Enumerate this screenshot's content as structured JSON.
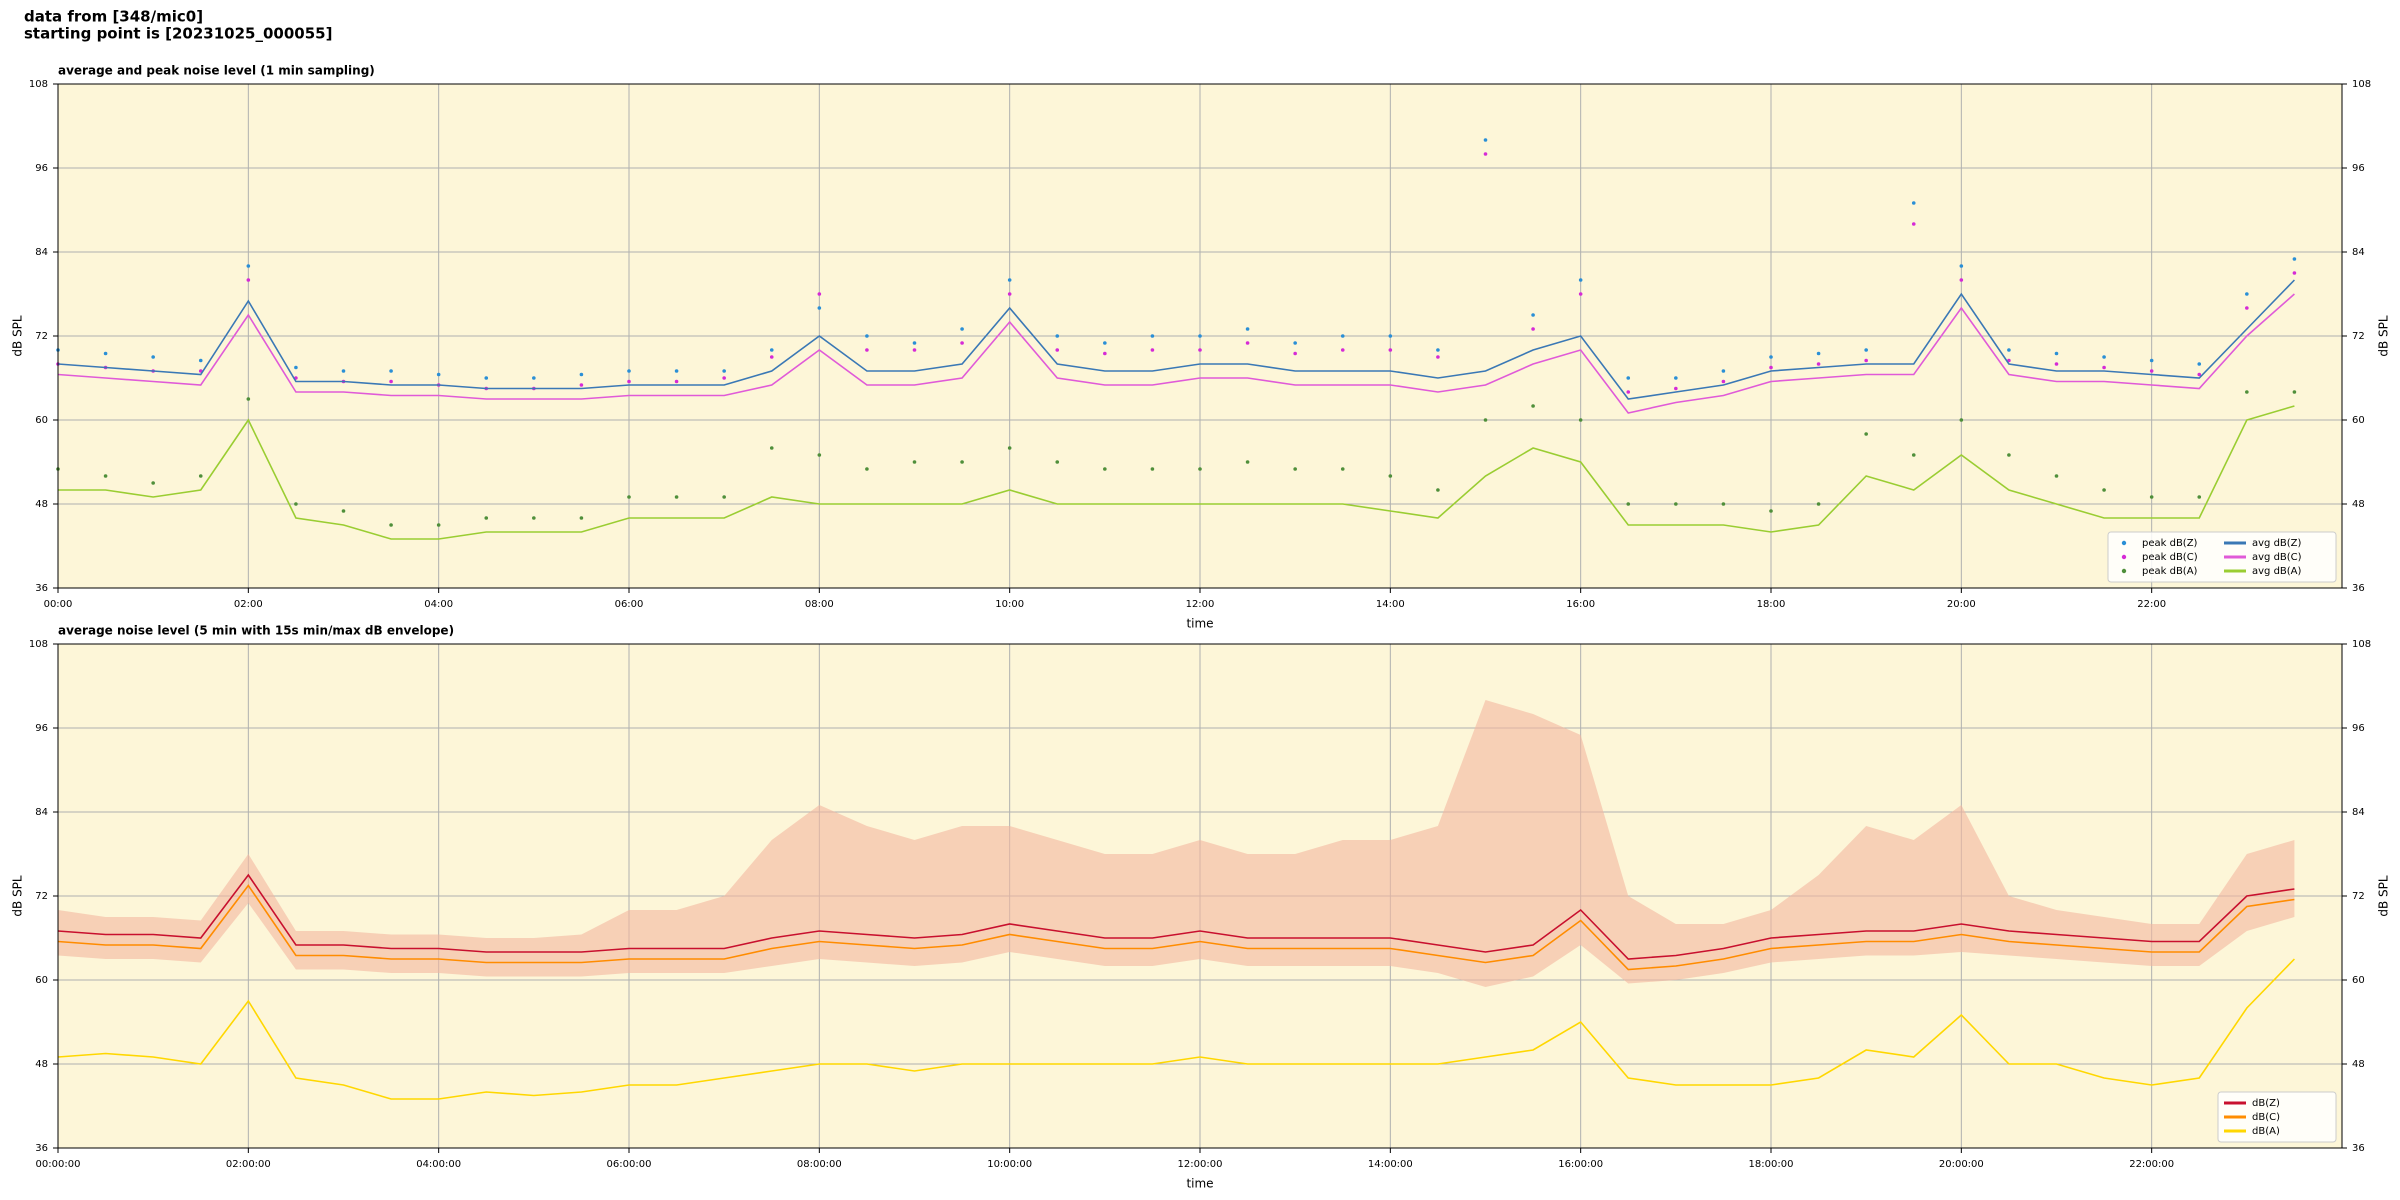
{
  "header": [
    "data from [348/mic0]",
    "starting point is [20231025_000055]"
  ],
  "chart_data": [
    {
      "type": "line",
      "title": "average and peak noise level (1 min sampling)",
      "xlabel": "time",
      "ylabel": "dB SPL",
      "xlim": [
        0,
        24
      ],
      "ylim": [
        36,
        108
      ],
      "yticks": [
        36,
        48,
        60,
        72,
        84,
        96,
        108
      ],
      "xticks": [
        {
          "value": 0,
          "label": "00:00"
        },
        {
          "value": 2,
          "label": "02:00"
        },
        {
          "value": 4,
          "label": "04:00"
        },
        {
          "value": 6,
          "label": "06:00"
        },
        {
          "value": 8,
          "label": "08:00"
        },
        {
          "value": 10,
          "label": "10:00"
        },
        {
          "value": 12,
          "label": "12:00"
        },
        {
          "value": 14,
          "label": "14:00"
        },
        {
          "value": 16,
          "label": "16:00"
        },
        {
          "value": 18,
          "label": "18:00"
        },
        {
          "value": 20,
          "label": "20:00"
        },
        {
          "value": 22,
          "label": "22:00"
        }
      ],
      "grid": true,
      "legend": "lower right",
      "legend_columns": 2,
      "background": "#fdf6d8",
      "x": [
        0,
        0.5,
        1,
        1.5,
        2,
        2.5,
        3,
        3.5,
        4,
        4.5,
        5,
        5.5,
        6,
        6.5,
        7,
        7.5,
        8,
        8.5,
        9,
        9.5,
        10,
        10.5,
        11,
        11.5,
        12,
        12.5,
        13,
        13.5,
        14,
        14.5,
        15,
        15.5,
        16,
        16.5,
        17,
        17.5,
        18,
        18.5,
        19,
        19.5,
        20,
        20.5,
        21,
        21.5,
        22,
        22.5,
        23,
        23.5
      ],
      "series": [
        {
          "name": "peak dB(Z)",
          "kind": "scatter",
          "color": "#2a8fd6",
          "values": [
            70,
            69.5,
            69,
            68.5,
            82,
            67.5,
            67,
            67,
            66.5,
            66,
            66,
            66.5,
            67,
            67,
            67,
            70,
            76,
            72,
            71,
            73,
            80,
            72,
            71,
            72,
            72,
            73,
            71,
            72,
            72,
            70,
            100,
            75,
            80,
            66,
            66,
            67,
            69,
            69.5,
            70,
            91,
            82,
            70,
            69.5,
            69,
            68.5,
            68,
            78,
            83
          ]
        },
        {
          "name": "peak dB(C)",
          "kind": "scatter",
          "color": "#d62ad6",
          "values": [
            68,
            67.5,
            67,
            67,
            80,
            66,
            65.5,
            65.5,
            65,
            64.5,
            64.5,
            65,
            65.5,
            65.5,
            66,
            69,
            78,
            70,
            70,
            71,
            78,
            70,
            69.5,
            70,
            70,
            71,
            69.5,
            70,
            70,
            69,
            98,
            73,
            78,
            64,
            64.5,
            65.5,
            67.5,
            68,
            68.5,
            88,
            80,
            68.5,
            68,
            67.5,
            67,
            66.5,
            76,
            81
          ]
        },
        {
          "name": "peak dB(A)",
          "kind": "scatter",
          "color": "#4f8f3a",
          "values": [
            53,
            52,
            51,
            52,
            63,
            48,
            47,
            45,
            45,
            46,
            46,
            46,
            49,
            49,
            49,
            56,
            55,
            53,
            54,
            54,
            56,
            54,
            53,
            53,
            53,
            54,
            53,
            53,
            52,
            50,
            60,
            62,
            60,
            48,
            48,
            48,
            47,
            48,
            58,
            55,
            60,
            55,
            52,
            50,
            49,
            49,
            64,
            64
          ]
        },
        {
          "name": "avg dB(Z)",
          "kind": "line",
          "color": "#3a78b5",
          "values": [
            68,
            67.5,
            67,
            66.5,
            77,
            65.5,
            65.5,
            65,
            65,
            64.5,
            64.5,
            64.5,
            65,
            65,
            65,
            67,
            72,
            67,
            67,
            68,
            76,
            68,
            67,
            67,
            68,
            68,
            67,
            67,
            67,
            66,
            67,
            70,
            72,
            63,
            64,
            65,
            67,
            67.5,
            68,
            68,
            78,
            68,
            67,
            67,
            66.5,
            66,
            73,
            80
          ]
        },
        {
          "name": "avg dB(C)",
          "kind": "line",
          "color": "#e05ad8",
          "values": [
            66.5,
            66,
            65.5,
            65,
            75,
            64,
            64,
            63.5,
            63.5,
            63,
            63,
            63,
            63.5,
            63.5,
            63.5,
            65,
            70,
            65,
            65,
            66,
            74,
            66,
            65,
            65,
            66,
            66,
            65,
            65,
            65,
            64,
            65,
            68,
            70,
            61,
            62.5,
            63.5,
            65.5,
            66,
            66.5,
            66.5,
            76,
            66.5,
            65.5,
            65.5,
            65,
            64.5,
            72,
            78
          ]
        },
        {
          "name": "avg dB(A)",
          "kind": "line",
          "color": "#9acd32",
          "values": [
            50,
            50,
            49,
            50,
            60,
            46,
            45,
            43,
            43,
            44,
            44,
            44,
            46,
            46,
            46,
            49,
            48,
            48,
            48,
            48,
            50,
            48,
            48,
            48,
            48,
            48,
            48,
            48,
            47,
            46,
            52,
            56,
            54,
            45,
            45,
            45,
            44,
            45,
            52,
            50,
            55,
            50,
            48,
            46,
            46,
            46,
            60,
            62
          ]
        }
      ]
    },
    {
      "type": "line",
      "title": "average noise level (5 min with 15s min/max dB envelope)",
      "xlabel": "time",
      "ylabel": "dB SPL",
      "xlim": [
        0,
        24
      ],
      "ylim": [
        36,
        108
      ],
      "yticks": [
        36,
        48,
        60,
        72,
        84,
        96,
        108
      ],
      "xticks": [
        {
          "value": 0,
          "label": "00:00:00"
        },
        {
          "value": 2,
          "label": "02:00:00"
        },
        {
          "value": 4,
          "label": "04:00:00"
        },
        {
          "value": 6,
          "label": "06:00:00"
        },
        {
          "value": 8,
          "label": "08:00:00"
        },
        {
          "value": 10,
          "label": "10:00:00"
        },
        {
          "value": 12,
          "label": "12:00:00"
        },
        {
          "value": 14,
          "label": "14:00:00"
        },
        {
          "value": 16,
          "label": "16:00:00"
        },
        {
          "value": 18,
          "label": "18:00:00"
        },
        {
          "value": 20,
          "label": "20:00:00"
        },
        {
          "value": 22,
          "label": "22:00:00"
        }
      ],
      "grid": true,
      "legend": "lower right",
      "legend_columns": 1,
      "background": "#fdf6d8",
      "x": [
        0,
        0.5,
        1,
        1.5,
        2,
        2.5,
        3,
        3.5,
        4,
        4.5,
        5,
        5.5,
        6,
        6.5,
        7,
        7.5,
        8,
        8.5,
        9,
        9.5,
        10,
        10.5,
        11,
        11.5,
        12,
        12.5,
        13,
        13.5,
        14,
        14.5,
        15,
        15.5,
        16,
        16.5,
        17,
        17.5,
        18,
        18.5,
        19,
        19.5,
        20,
        20.5,
        21,
        21.5,
        22,
        22.5,
        23,
        23.5
      ],
      "envelope": {
        "color": "#f4b8a0",
        "low": [
          63.5,
          63,
          63,
          62.5,
          71,
          61.5,
          61.5,
          61,
          61,
          60.5,
          60.5,
          60.5,
          61,
          61,
          61,
          62,
          63,
          62.5,
          62,
          62.5,
          64,
          63,
          62,
          62,
          63,
          62,
          62,
          62,
          62,
          61,
          59,
          60.5,
          65,
          59.5,
          60,
          61,
          62.5,
          63,
          63.5,
          63.5,
          64,
          63.5,
          63,
          62.5,
          62,
          62,
          67,
          69
        ],
        "high": [
          70,
          69,
          69,
          68.5,
          78,
          67,
          67,
          66.5,
          66.5,
          66,
          66,
          66.5,
          70,
          70,
          72,
          80,
          85,
          82,
          80,
          82,
          82,
          80,
          78,
          78,
          80,
          78,
          78,
          80,
          80,
          82,
          100,
          98,
          95,
          72,
          68,
          68,
          70,
          75,
          82,
          80,
          85,
          72,
          70,
          69,
          68,
          68,
          78,
          80
        ]
      },
      "series": [
        {
          "name": "dB(Z)",
          "kind": "line",
          "color": "#c8102e",
          "values": [
            67,
            66.5,
            66.5,
            66,
            75,
            65,
            65,
            64.5,
            64.5,
            64,
            64,
            64,
            64.5,
            64.5,
            64.5,
            66,
            67,
            66.5,
            66,
            66.5,
            68,
            67,
            66,
            66,
            67,
            66,
            66,
            66,
            66,
            65,
            64,
            65,
            70,
            63,
            63.5,
            64.5,
            66,
            66.5,
            67,
            67,
            68,
            67,
            66.5,
            66,
            65.5,
            65.5,
            72,
            73
          ]
        },
        {
          "name": "dB(C)",
          "kind": "line",
          "color": "#ff8c00",
          "values": [
            65.5,
            65,
            65,
            64.5,
            73.5,
            63.5,
            63.5,
            63,
            63,
            62.5,
            62.5,
            62.5,
            63,
            63,
            63,
            64.5,
            65.5,
            65,
            64.5,
            65,
            66.5,
            65.5,
            64.5,
            64.5,
            65.5,
            64.5,
            64.5,
            64.5,
            64.5,
            63.5,
            62.5,
            63.5,
            68.5,
            61.5,
            62,
            63,
            64.5,
            65,
            65.5,
            65.5,
            66.5,
            65.5,
            65,
            64.5,
            64,
            64,
            70.5,
            71.5
          ]
        },
        {
          "name": "dB(A)",
          "kind": "line",
          "color": "#ffd700",
          "values": [
            49,
            49.5,
            49,
            48,
            57,
            46,
            45,
            43,
            43,
            44,
            43.5,
            44,
            45,
            45,
            46,
            47,
            48,
            48,
            47,
            48,
            48,
            48,
            48,
            48,
            49,
            48,
            48,
            48,
            48,
            48,
            49,
            50,
            54,
            46,
            45,
            45,
            45,
            46,
            50,
            49,
            55,
            48,
            48,
            46,
            45,
            46,
            56,
            63
          ]
        }
      ]
    }
  ]
}
